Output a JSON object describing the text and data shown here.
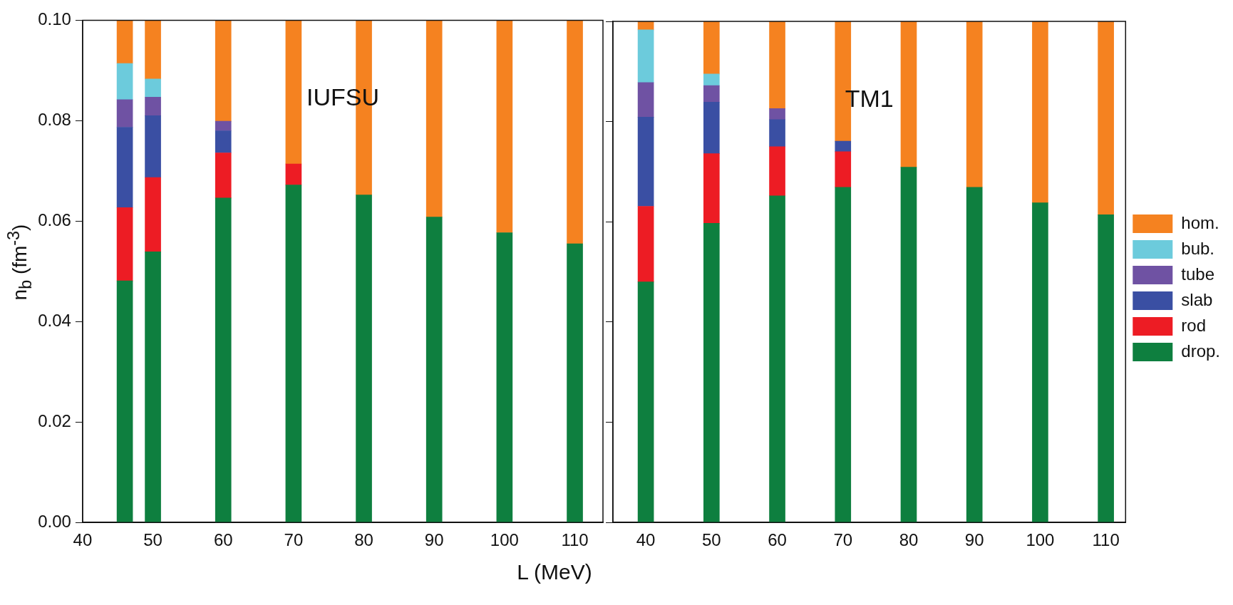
{
  "chart_data": [
    {
      "type": "bar",
      "stacked": true,
      "ylabel": "n$_{b}$ (fm$^{-3}$)",
      "xlabel": "L (MeV)",
      "annotations": [
        "IUFSU"
      ],
      "x": [
        46,
        50,
        60,
        70,
        80,
        90,
        100,
        110
      ],
      "xlim": [
        40,
        114
      ],
      "xticks": [
        40,
        50,
        60,
        70,
        80,
        90,
        100,
        110
      ],
      "ylim": [
        0,
        0.1
      ],
      "yticks": [
        {
          "value": 0,
          "label": "0.00"
        },
        {
          "value": 0.02,
          "label": "0.02"
        },
        {
          "value": 0.04,
          "label": "0.04"
        },
        {
          "value": 0.06,
          "label": "0.06"
        },
        {
          "value": 0.08,
          "label": "0.08"
        },
        {
          "value": 0.1,
          "label": "0.10"
        }
      ],
      "series": [
        {
          "color": "#0e7f3f",
          "values": [
            0.0481,
            0.0539,
            0.0646,
            0.0672,
            0.0652,
            0.0608,
            0.0577,
            0.0555
          ]
        },
        {
          "color": "#ed1c24",
          "values": [
            0.0146,
            0.0148,
            0.009,
            0.0042,
            null,
            null,
            null,
            null
          ]
        },
        {
          "color": "#3a4fa3",
          "values": [
            0.016,
            0.0123,
            0.0044,
            null,
            null,
            null,
            null,
            null
          ]
        },
        {
          "color": "#6f52a3",
          "values": [
            0.0055,
            0.0037,
            0.0019,
            null,
            null,
            null,
            null,
            null
          ]
        },
        {
          "color": "#6ccbdc",
          "values": [
            0.0072,
            0.0036,
            null,
            null,
            null,
            null,
            null,
            null
          ]
        },
        {
          "color": "#f58220",
          "values": [
            0.0086,
            0.0117,
            0.0201,
            0.0286,
            0.0348,
            0.0392,
            0.0423,
            0.0445
          ]
        }
      ]
    },
    {
      "type": "bar",
      "stacked": true,
      "annotations": [
        "TM1"
      ],
      "legend": "right",
      "tick_labels": "x",
      "x": [
        40,
        50,
        60,
        70,
        80,
        90,
        100,
        110
      ],
      "xlim": [
        35,
        113
      ],
      "xticks": [
        40,
        50,
        60,
        70,
        80,
        90,
        100,
        110
      ],
      "ylim": [
        0,
        0.1
      ],
      "yticks": [
        {
          "value": 0,
          "label": null
        },
        {
          "value": 0.02,
          "label": null
        },
        {
          "value": 0.04,
          "label": null
        },
        {
          "value": 0.06,
          "label": null
        },
        {
          "value": 0.08,
          "label": null
        },
        {
          "value": 0.1,
          "label": null
        }
      ],
      "series": [
        {
          "name": "drop.",
          "color": "#0e7f3f",
          "values": [
            0.048,
            0.0597,
            0.0652,
            0.0669,
            0.0709,
            0.0669,
            0.0638,
            0.0614
          ]
        },
        {
          "name": "rod",
          "color": "#ed1c24",
          "values": [
            0.0151,
            0.0139,
            0.0098,
            0.0071,
            null,
            null,
            null,
            null
          ]
        },
        {
          "name": "slab",
          "color": "#3a4fa3",
          "values": [
            0.0178,
            0.0103,
            0.0054,
            0.0021,
            null,
            null,
            null,
            null
          ]
        },
        {
          "name": "tube",
          "color": "#6f52a3",
          "values": [
            0.0069,
            0.0033,
            0.0022,
            null,
            null,
            null,
            null,
            null
          ]
        },
        {
          "name": "bub.",
          "color": "#6ccbdc",
          "values": [
            0.0105,
            0.0023,
            null,
            null,
            null,
            null,
            null,
            null
          ]
        },
        {
          "name": "hom.",
          "color": "#f58220",
          "values": [
            0.0017,
            0.0105,
            0.0174,
            0.0239,
            0.0291,
            0.0331,
            0.0362,
            0.0386
          ]
        }
      ]
    }
  ]
}
